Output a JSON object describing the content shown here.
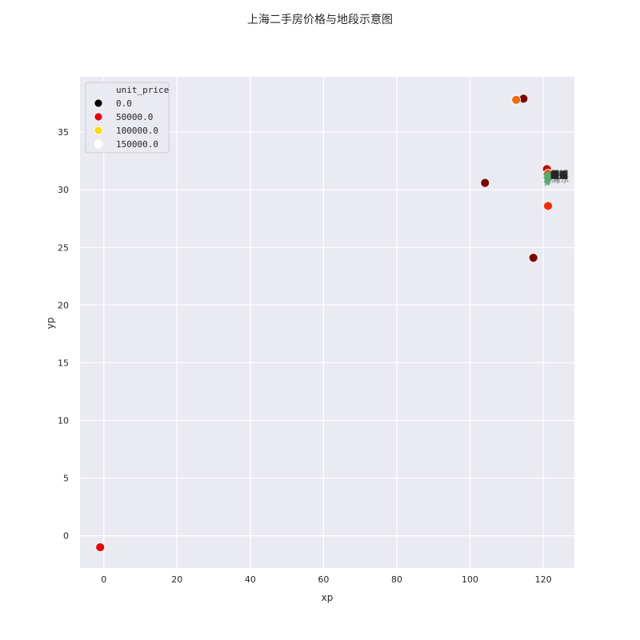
{
  "chart_data": {
    "type": "scatter",
    "title": "上海二手房价格与地段示意图",
    "xlabel": "xp",
    "ylabel": "yp",
    "xlim": [
      -6.5,
      128.5
    ],
    "ylim": [
      -2.8,
      39.8
    ],
    "xticks": [
      0,
      20,
      40,
      60,
      80,
      100,
      120
    ],
    "yticks": [
      0,
      5,
      10,
      15,
      20,
      25,
      30,
      35
    ],
    "grid": true,
    "legend": {
      "title": "unit_price",
      "placement": "top-left",
      "entries": [
        {
          "label": "0.0",
          "color": "#000000"
        },
        {
          "label": "50000.0",
          "color": "#e8000b"
        },
        {
          "label": "100000.0",
          "color": "#ffdd00"
        },
        {
          "label": "150000.0",
          "color": "#ffffff"
        }
      ]
    },
    "points": [
      {
        "x": 114.6,
        "y": 37.9,
        "color": "#7a0000"
      },
      {
        "x": 112.6,
        "y": 37.8,
        "color": "#ee6a00"
      },
      {
        "x": 104.1,
        "y": 30.6,
        "color": "#7a0000"
      },
      {
        "x": 117.3,
        "y": 24.1,
        "color": "#7a0000"
      },
      {
        "x": 121.3,
        "y": 28.6,
        "color": "#ff2a00"
      },
      {
        "x": -1.0,
        "y": -1.0,
        "color": "#ee0000"
      },
      {
        "x": 121.0,
        "y": 31.8,
        "color": "#c80000"
      },
      {
        "x": 121.3,
        "y": 31.4,
        "color": "#ff4400"
      }
    ],
    "cluster": {
      "color": "#59a86b",
      "points": [
        {
          "x": 121.0,
          "y": 31.2
        },
        {
          "x": 121.3,
          "y": 31.1
        },
        {
          "x": 121.6,
          "y": 31.2
        },
        {
          "x": 121.1,
          "y": 30.9
        },
        {
          "x": 121.4,
          "y": 30.8
        },
        {
          "x": 120.9,
          "y": 31.0
        },
        {
          "x": 121.5,
          "y": 31.4
        },
        {
          "x": 121.2,
          "y": 30.7
        },
        {
          "x": 121.7,
          "y": 31.0
        },
        {
          "x": 120.8,
          "y": 31.3
        },
        {
          "x": 121.4,
          "y": 31.3
        },
        {
          "x": 121.0,
          "y": 30.6
        }
      ]
    },
    "annotations": [
      {
        "text": "浦东",
        "x": 121.5,
        "y": 31.3
      },
      {
        "text": "闵行",
        "x": 121.5,
        "y": 31.3
      },
      {
        "text": "宝山",
        "x": 121.5,
        "y": 31.3
      },
      {
        "text": "徐汇",
        "x": 121.5,
        "y": 31.3
      },
      {
        "text": "静安",
        "x": 121.5,
        "y": 31.3
      },
      {
        "text": "长宁",
        "x": 121.5,
        "y": 31.3
      },
      {
        "text": "普陀",
        "x": 121.5,
        "y": 31.3
      },
      {
        "text": "黄浦",
        "x": 121.5,
        "y": 31.3
      },
      {
        "text": "虹口",
        "x": 121.5,
        "y": 31.3
      },
      {
        "text": "杨浦",
        "x": 121.5,
        "y": 31.3
      },
      {
        "text": "嘉定",
        "x": 121.5,
        "y": 31.3
      },
      {
        "text": "松江",
        "x": 121.5,
        "y": 31.3
      },
      {
        "text": "青浦",
        "x": 121.5,
        "y": 31.3
      },
      {
        "text": "奉贤",
        "x": 121.5,
        "y": 31.3
      },
      {
        "text": "金山",
        "x": 121.5,
        "y": 31.3
      },
      {
        "text": "崇明",
        "x": 121.5,
        "y": 31.3
      },
      {
        "text": "路",
        "x": 122.3,
        "y": 31.35
      },
      {
        "text": "浦东",
        "x": 121.8,
        "y": 30.95
      },
      {
        "text": "黄浦",
        "x": 121.6,
        "y": 31.4
      }
    ],
    "colors": {
      "plot_bg": "#eaeaf2",
      "grid": "#ffffff",
      "text": "#262626"
    }
  }
}
